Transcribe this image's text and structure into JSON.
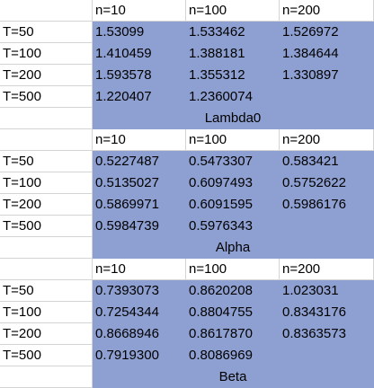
{
  "tables": [
    {
      "headers": [
        "n=10",
        "n=100",
        "n=200"
      ],
      "rows": [
        {
          "label": "T=50",
          "values": [
            "1.53099",
            "1.533462",
            "1.526972"
          ]
        },
        {
          "label": "T=100",
          "values": [
            "1.410459",
            "1.388181",
            "1.384644"
          ]
        },
        {
          "label": "T=200",
          "values": [
            "1.593578",
            "1.355312",
            "1.330897"
          ]
        },
        {
          "label": "T=500",
          "values": [
            "1.220407",
            "1.2360074",
            ""
          ]
        }
      ],
      "caption": "Lambda0"
    },
    {
      "headers": [
        "n=10",
        "n=100",
        "n=200"
      ],
      "rows": [
        {
          "label": "T=50",
          "values": [
            "0.5227487",
            "0.5473307",
            "0.583421"
          ]
        },
        {
          "label": "T=100",
          "values": [
            "0.5135027",
            "0.6097493",
            "0.5752622"
          ]
        },
        {
          "label": "T=200",
          "values": [
            "0.5869971",
            "0.6091595",
            "0.5986176"
          ]
        },
        {
          "label": "T=500",
          "values": [
            "0.5984739",
            "0.5976343",
            ""
          ]
        }
      ],
      "caption": "Alpha"
    },
    {
      "headers": [
        "n=10",
        "n=100",
        "n=200"
      ],
      "rows": [
        {
          "label": "T=50",
          "values": [
            "0.7393073",
            "0.8620208",
            "1.023031"
          ]
        },
        {
          "label": "T=100",
          "values": [
            "0.7254344",
            "0.8804755",
            "0.8343176"
          ]
        },
        {
          "label": "T=200",
          "values": [
            "0.8668946",
            "0.8617870",
            "0.8363573"
          ]
        },
        {
          "label": "T=500",
          "values": [
            "0.7919300",
            "0.8086969",
            ""
          ]
        }
      ],
      "caption": "Beta"
    }
  ],
  "colors": {
    "cell_fill": "#8ea0d2",
    "gridline": "#d4d4d4"
  }
}
